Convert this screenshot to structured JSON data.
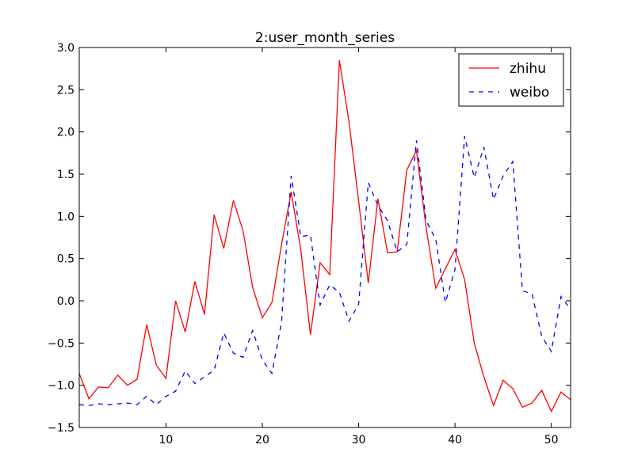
{
  "chart_data": {
    "type": "line",
    "title": "2:user_month_series",
    "xlabel": "",
    "ylabel": "",
    "xlim": [
      1,
      52
    ],
    "ylim": [
      -1.5,
      3.0
    ],
    "xticks": [
      10,
      20,
      30,
      40,
      50
    ],
    "xtick_labels": [
      "10",
      "20",
      "30",
      "40",
      "50"
    ],
    "yticks": [
      -1.5,
      -1.0,
      -0.5,
      0.0,
      0.5,
      1.0,
      1.5,
      2.0,
      2.5,
      3.0
    ],
    "ytick_labels": [
      "−1.5",
      "−1.0",
      "−0.5",
      "0.0",
      "0.5",
      "1.0",
      "1.5",
      "2.0",
      "2.5",
      "3.0"
    ],
    "grid": false,
    "legend_position": "top-right",
    "x": [
      1,
      2,
      3,
      4,
      5,
      6,
      7,
      8,
      9,
      10,
      11,
      12,
      13,
      14,
      15,
      16,
      17,
      18,
      19,
      20,
      21,
      22,
      23,
      24,
      25,
      26,
      27,
      28,
      29,
      30,
      31,
      32,
      33,
      34,
      35,
      36,
      37,
      38,
      39,
      40,
      41,
      42,
      43,
      44,
      45,
      46,
      47,
      48,
      49,
      50,
      51,
      52
    ],
    "series": [
      {
        "name": "zhihu",
        "color": "#ff0000",
        "style": "solid",
        "values": [
          -0.86,
          -1.16,
          -1.02,
          -1.03,
          -0.88,
          -1.0,
          -0.93,
          -0.28,
          -0.76,
          -0.92,
          0.0,
          -0.37,
          0.23,
          -0.16,
          1.02,
          0.62,
          1.19,
          0.83,
          0.16,
          -0.2,
          -0.02,
          0.67,
          1.29,
          0.6,
          -0.4,
          0.45,
          0.31,
          2.85,
          2.12,
          1.18,
          0.21,
          1.21,
          0.57,
          0.58,
          1.55,
          1.78,
          0.87,
          0.15,
          0.38,
          0.61,
          0.25,
          -0.5,
          -0.9,
          -1.24,
          -0.94,
          -1.04,
          -1.26,
          -1.21,
          -1.06,
          -1.31,
          -1.08,
          -1.17
        ]
      },
      {
        "name": "weibo",
        "color": "#0000ff",
        "style": "dashed",
        "values": [
          -1.23,
          -1.24,
          -1.22,
          -1.23,
          -1.22,
          -1.21,
          -1.23,
          -1.13,
          -1.23,
          -1.13,
          -1.07,
          -0.83,
          -0.98,
          -0.9,
          -0.82,
          -0.38,
          -0.62,
          -0.67,
          -0.35,
          -0.7,
          -0.86,
          -0.25,
          1.48,
          0.76,
          0.78,
          -0.05,
          0.19,
          0.1,
          -0.24,
          -0.04,
          1.4,
          1.13,
          0.95,
          0.58,
          0.67,
          1.9,
          0.95,
          0.73,
          -0.02,
          0.37,
          1.95,
          1.46,
          1.82,
          1.2,
          1.48,
          1.65,
          0.12,
          0.08,
          -0.42,
          -0.6,
          0.05,
          -0.1
        ]
      }
    ]
  }
}
